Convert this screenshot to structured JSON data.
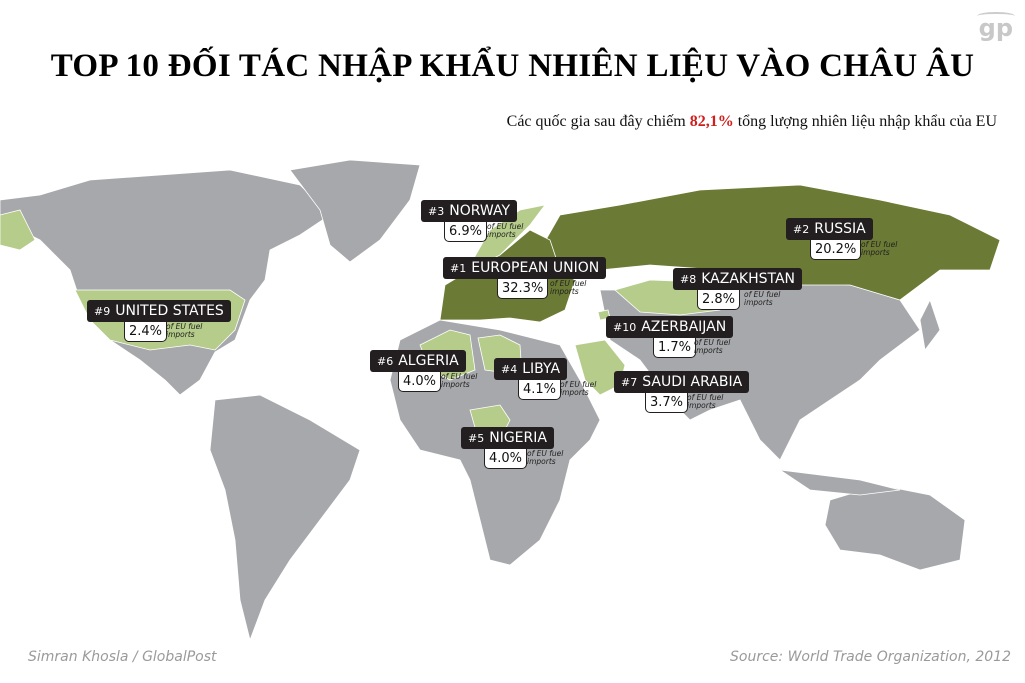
{
  "title": "TOP 10 ĐỐI TÁC NHẬP KHẨU NHIÊN LIỆU VÀO CHÂU ÂU",
  "subtitle": {
    "before": "Các quốc gia sau đây chiếm ",
    "highlight": "82,1%",
    "after": " tổng lượng nhiên liệu nhập khẩu của EU"
  },
  "logo": "gp",
  "sub_note": "of EU fuel imports",
  "colors": {
    "land": "#a7a8ab",
    "top_partner": "#6b7a34",
    "partner": "#b5cc8a",
    "label_bg": "#231f20",
    "highlight": "#d0201e"
  },
  "partners": [
    {
      "rank": "#1",
      "name": "EUROPEAN UNION",
      "share": "32.3%"
    },
    {
      "rank": "#2",
      "name": "RUSSIA",
      "share": "20.2%"
    },
    {
      "rank": "#3",
      "name": "NORWAY",
      "share": "6.9%"
    },
    {
      "rank": "#4",
      "name": "LIBYA",
      "share": "4.1%"
    },
    {
      "rank": "#5",
      "name": "NIGERIA",
      "share": "4.0%"
    },
    {
      "rank": "#6",
      "name": "ALGERIA",
      "share": "4.0%"
    },
    {
      "rank": "#7",
      "name": "SAUDI ARABIA",
      "share": "3.7%"
    },
    {
      "rank": "#8",
      "name": "KAZAKHSTAN",
      "share": "2.8%"
    },
    {
      "rank": "#9",
      "name": "UNITED STATES",
      "share": "2.4%"
    },
    {
      "rank": "#10",
      "name": "AZERBAIJAN",
      "share": "1.7%"
    }
  ],
  "footer": {
    "credit": "Simran Khosla / GlobalPost",
    "source": "Source: World Trade Organization, 2012"
  }
}
